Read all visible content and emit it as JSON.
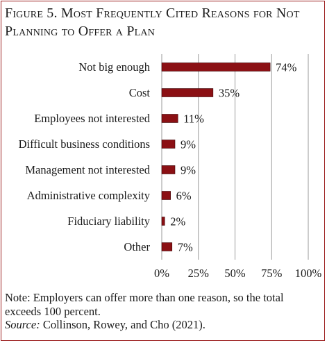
{
  "figure": {
    "title_line1": "Figure 5. Most Frequently Cited Reasons for Not",
    "title_line2": "Planning to Offer a Plan",
    "note": "Note: Employers can offer more than one reason, so the total exceeds 100 percent.",
    "source_label": "Source:",
    "source_text": " Collinson, Rowey, and Cho (2021)."
  },
  "colors": {
    "accent": "#9b1c1c",
    "bar": "#8b1014",
    "bar_stroke": "#3d0507",
    "grid": "#9a9a9a"
  },
  "chart_data": {
    "type": "bar",
    "orientation": "horizontal",
    "categories": [
      "Not big enough",
      "Cost",
      "Employees not interested",
      "Difficult business conditions",
      "Management not interested",
      "Administrative complexity",
      "Fiduciary liability",
      "Other"
    ],
    "values": [
      74,
      35,
      11,
      9,
      9,
      6,
      2,
      7
    ],
    "value_labels": [
      "74%",
      "35%",
      "11%",
      "9%",
      "9%",
      "6%",
      "2%",
      "7%"
    ],
    "x_ticks": [
      0,
      25,
      50,
      75,
      100
    ],
    "x_tick_labels": [
      "0%",
      "25%",
      "50%",
      "75%",
      "100%"
    ],
    "xlim": [
      0,
      100
    ],
    "grid": true,
    "legend": false
  }
}
